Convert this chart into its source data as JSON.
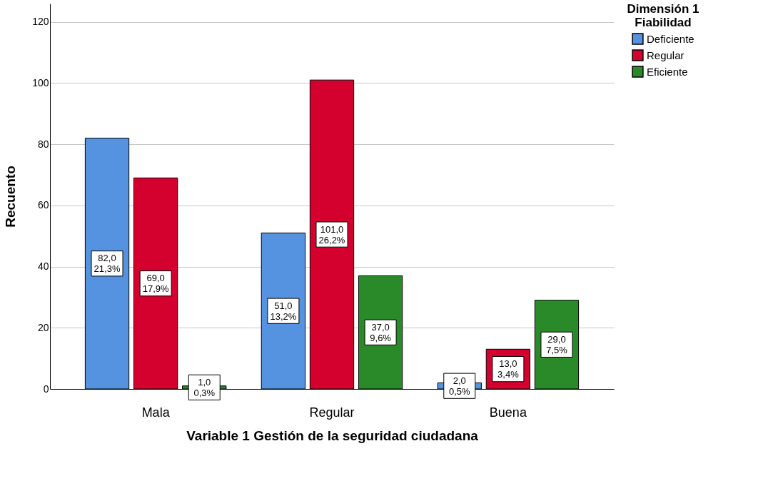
{
  "chart_data": {
    "type": "bar",
    "xlabel": "Variable 1 Gestión de la seguridad ciudadana",
    "ylabel": "Recuento",
    "legend_title": "Dimensión 1\nFiabilidad",
    "categories": [
      "Mala",
      "Regular",
      "Buena"
    ],
    "series": [
      {
        "name": "Deficiente",
        "color": "#5592e0",
        "values": [
          82,
          51,
          2
        ],
        "value_labels": [
          "82,0\n21,3%",
          "51,0\n13,2%",
          "2,0\n0,5%"
        ]
      },
      {
        "name": "Regular",
        "color": "#d4002e",
        "values": [
          69,
          101,
          13
        ],
        "value_labels": [
          "69,0\n17,9%",
          "101,0\n26,2%",
          "13,0\n3,4%"
        ]
      },
      {
        "name": "Eficiente",
        "color": "#2a8a2a",
        "values": [
          1,
          37,
          29
        ],
        "value_labels": [
          "1,0\n0,3%",
          "37,0\n9,6%",
          "29,0\n7,5%"
        ]
      }
    ],
    "ylim": [
      0,
      126
    ],
    "yticks": [
      0,
      20,
      40,
      60,
      80,
      100,
      120
    ],
    "grid": "y",
    "legend": "top right"
  }
}
